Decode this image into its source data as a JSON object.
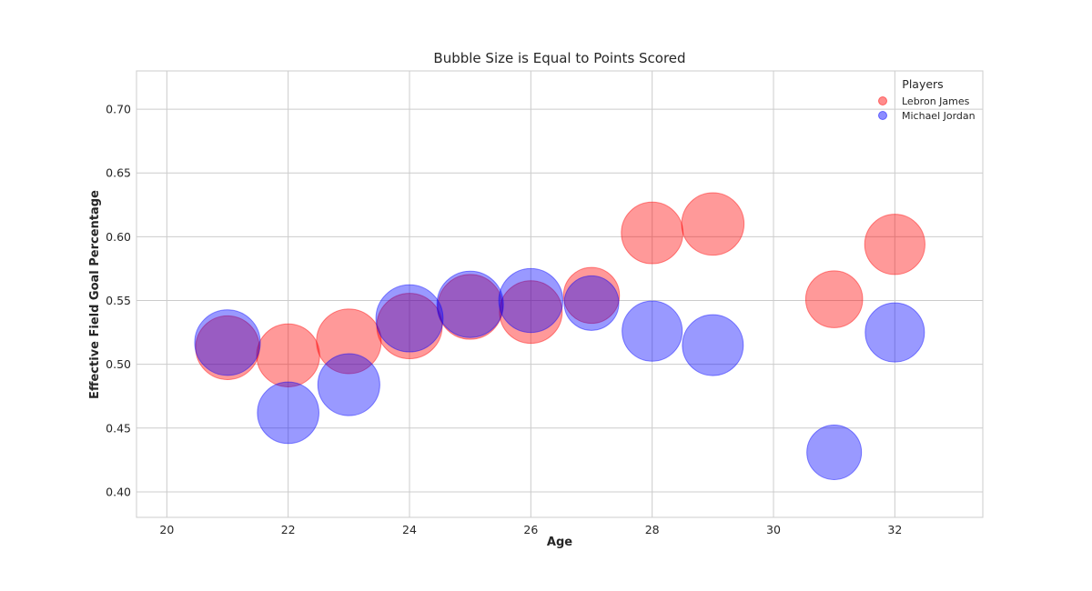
{
  "chart_data": {
    "type": "scatter",
    "title": "Bubble Size is Equal to Points Scored",
    "xlabel": "Age",
    "ylabel": "Effective Field Goal Percentage",
    "xlim": [
      19.5,
      33.45
    ],
    "ylim": [
      0.38,
      0.73
    ],
    "xticks": [
      20,
      22,
      24,
      26,
      28,
      30,
      32
    ],
    "yticks": [
      0.4,
      0.45,
      0.5,
      0.55,
      0.6,
      0.65,
      0.7
    ],
    "grid": true,
    "legend_title": "Players",
    "legend_position": "top-right",
    "bubble_size_encodes": "points scored",
    "series": [
      {
        "name": "Lebron James",
        "color": "#ff0000",
        "points": [
          {
            "x": 21,
            "y": 0.513,
            "size": 2180
          },
          {
            "x": 22,
            "y": 0.507,
            "size": 2130
          },
          {
            "x": 23,
            "y": 0.518,
            "size": 2250
          },
          {
            "x": 24,
            "y": 0.53,
            "size": 2300
          },
          {
            "x": 25,
            "y": 0.545,
            "size": 2260
          },
          {
            "x": 26,
            "y": 0.541,
            "size": 2110
          },
          {
            "x": 27,
            "y": 0.554,
            "size": 1680
          },
          {
            "x": 28,
            "y": 0.603,
            "size": 2040
          },
          {
            "x": 29,
            "y": 0.61,
            "size": 2090
          },
          {
            "x": 31,
            "y": 0.551,
            "size": 1740
          },
          {
            "x": 32,
            "y": 0.594,
            "size": 1950
          }
        ]
      },
      {
        "name": "Michael Jordan",
        "color": "#0000ff",
        "points": [
          {
            "x": 21,
            "y": 0.517,
            "size": 2310
          },
          {
            "x": 22,
            "y": 0.462,
            "size": 2030
          },
          {
            "x": 23,
            "y": 0.484,
            "size": 2060
          },
          {
            "x": 24,
            "y": 0.536,
            "size": 2420
          },
          {
            "x": 25,
            "y": 0.547,
            "size": 2370
          },
          {
            "x": 26,
            "y": 0.55,
            "size": 2200
          },
          {
            "x": 27,
            "y": 0.548,
            "size": 1600
          },
          {
            "x": 28,
            "y": 0.526,
            "size": 1940
          },
          {
            "x": 29,
            "y": 0.515,
            "size": 1990
          },
          {
            "x": 31,
            "y": 0.431,
            "size": 1600
          },
          {
            "x": 32,
            "y": 0.525,
            "size": 1880
          }
        ]
      }
    ]
  }
}
